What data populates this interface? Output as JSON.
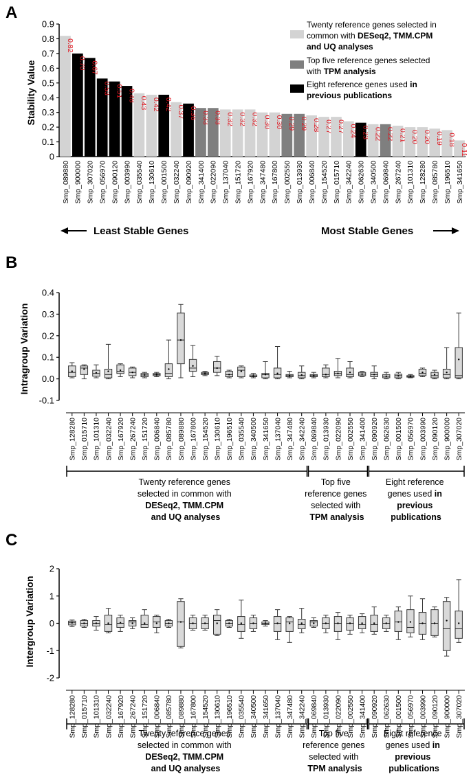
{
  "colors": {
    "common": "#d3d3d3",
    "tpm": "#7f7f7f",
    "previous": "#000000",
    "value_label": "#e0141e",
    "box_fill": "#d9d9d9"
  },
  "panel_a": {
    "letter": "A",
    "ylabel": "Stability  Value",
    "yticks": [
      "0",
      "0.1",
      "0.2",
      "0.3",
      "0.4",
      "0.5",
      "0.6",
      "0.7",
      "0.8",
      "0.9"
    ],
    "legend": [
      {
        "group": "common",
        "lines": [
          [
            "Twenty reference genes selected in",
            ""
          ],
          [
            "common with ",
            "DESeq2, TMM.CPM"
          ],
          [
            "",
            "and UQ analyses"
          ]
        ]
      },
      {
        "group": "tpm",
        "lines": [
          [
            "Top five reference genes selected",
            ""
          ],
          [
            "with ",
            "TPM analysis"
          ]
        ]
      },
      {
        "group": "previous",
        "lines": [
          [
            "Eight reference genes used ",
            "in"
          ],
          [
            "",
            "previous publications"
          ]
        ]
      }
    ],
    "left_label": "Least  Stable Genes",
    "right_label": "Most Stable Genes"
  },
  "panel_b": {
    "letter": "B",
    "ylabel": "Intragroup  Variation",
    "yticks": [
      "-0.1",
      "0.0",
      "0.1",
      "0.2",
      "0.3",
      "0.4"
    ]
  },
  "panel_c": {
    "letter": "C",
    "ylabel": "Intergroup  Variation",
    "yticks": [
      "-2",
      "-1",
      "0",
      "1",
      "2"
    ]
  },
  "group_labels": [
    {
      "lines": [
        [
          "Twenty reference genes",
          ""
        ],
        [
          "selected in common with",
          ""
        ],
        [
          "",
          "DESeq2, TMM.CPM"
        ],
        [
          "",
          "and UQ analyses"
        ]
      ]
    },
    {
      "lines": [
        [
          "Top five",
          ""
        ],
        [
          "reference genes",
          ""
        ],
        [
          "selected with",
          ""
        ],
        [
          "",
          "TPM analysis"
        ]
      ]
    },
    {
      "lines": [
        [
          "Eight reference",
          ""
        ],
        [
          "genes used ",
          "in"
        ],
        [
          "",
          "previous"
        ],
        [
          "",
          "publications"
        ]
      ]
    }
  ],
  "chart_data": [
    {
      "type": "bar",
      "ylabel": "Stability  Value",
      "ylim": [
        0,
        0.9
      ],
      "categories": [
        "Smp_089880",
        "Smp_900000",
        "Smp_307020",
        "Smp_056970",
        "Smp_090120",
        "Smp_003990",
        "Smp_035540",
        "Smp_130610",
        "Smp_001500",
        "Smp_032240",
        "Smp_090920",
        "Smp_341400",
        "Smp_022090",
        "Smp_137040",
        "Smp_151720",
        "Smp_167920",
        "Smp_347480",
        "Smp_167800",
        "Smp_002550",
        "Smp_013930",
        "Smp_006840",
        "Smp_154520",
        "Smp_015710",
        "Smp_342240",
        "Smp_062630",
        "Smp_340500",
        "Smp_069840",
        "Smp_267240",
        "Smp_101310",
        "Smp_128280",
        "Smp_085780",
        "Smp_196510",
        "Smp_341650"
      ],
      "values": [
        0.82,
        0.7,
        0.67,
        0.53,
        0.51,
        0.48,
        0.43,
        0.42,
        0.42,
        0.37,
        0.36,
        0.33,
        0.33,
        0.32,
        0.32,
        0.32,
        0.3,
        0.3,
        0.29,
        0.29,
        0.28,
        0.27,
        0.27,
        0.24,
        0.23,
        0.22,
        0.22,
        0.21,
        0.2,
        0.2,
        0.19,
        0.18,
        0.11
      ],
      "groups": [
        "common",
        "previous",
        "previous",
        "previous",
        "previous",
        "previous",
        "common",
        "common",
        "previous",
        "common",
        "previous",
        "tpm",
        "tpm",
        "common",
        "common",
        "common",
        "common",
        "common",
        "tpm",
        "tpm",
        "common",
        "common",
        "common",
        "common",
        "previous",
        "common",
        "tpm",
        "common",
        "common",
        "common",
        "common",
        "common",
        "common"
      ],
      "legend": [
        "Twenty reference genes selected in common with DESeq2, TMM.CPM and UQ analyses",
        "Top five reference genes selected with TPM analysis",
        "Eight reference genes used in previous publications"
      ]
    },
    {
      "type": "box",
      "ylabel": "Intragroup  Variation",
      "ylim": [
        -0.1,
        0.4
      ],
      "categories": [
        "Smp_128280",
        "Smp_015710",
        "Smp_101310",
        "Smp_032240",
        "Smp_167920",
        "Smp_267240",
        "Smp_151720",
        "Smp_006840",
        "Smp_085780",
        "Smp_089880",
        "Smp_167800",
        "Smp_154520",
        "Smp_130610",
        "Smp_196510",
        "Smp_035540",
        "Smp_340500",
        "Smp_341650",
        "Smp_137040",
        "Smp_347480",
        "Smp_342240",
        "Smp_069840",
        "Smp_013930",
        "Smp_022090",
        "Smp_002550",
        "Smp_341400",
        "Smp_090920",
        "Smp_062630",
        "Smp_001500",
        "Smp_056970",
        "Smp_003990",
        "Smp_090120",
        "Smp_900000",
        "Smp_307020"
      ],
      "boxes": [
        {
          "min": 0.005,
          "q1": 0.01,
          "median": 0.03,
          "q3": 0.06,
          "max": 0.075,
          "mean": 0.035
        },
        {
          "min": 0.0,
          "q1": 0.02,
          "median": 0.05,
          "q3": 0.06,
          "max": 0.065,
          "mean": 0.045
        },
        {
          "min": 0.005,
          "q1": 0.012,
          "median": 0.025,
          "q3": 0.04,
          "max": 0.065,
          "mean": 0.028
        },
        {
          "min": 0.0,
          "q1": 0.005,
          "median": 0.02,
          "q3": 0.045,
          "max": 0.16,
          "mean": 0.035
        },
        {
          "min": 0.01,
          "q1": 0.025,
          "median": 0.035,
          "q3": 0.065,
          "max": 0.07,
          "mean": 0.04
        },
        {
          "min": 0.005,
          "q1": 0.015,
          "median": 0.03,
          "q3": 0.05,
          "max": 0.055,
          "mean": 0.03
        },
        {
          "min": 0.005,
          "q1": 0.01,
          "median": 0.018,
          "q3": 0.025,
          "max": 0.03,
          "mean": 0.018
        },
        {
          "min": 0.01,
          "q1": 0.015,
          "median": 0.02,
          "q3": 0.025,
          "max": 0.03,
          "mean": 0.02
        },
        {
          "min": 0.0,
          "q1": 0.01,
          "median": 0.025,
          "q3": 0.07,
          "max": 0.18,
          "mean": 0.045
        },
        {
          "min": 0.005,
          "q1": 0.07,
          "median": 0.18,
          "q3": 0.305,
          "max": 0.345,
          "mean": 0.18
        },
        {
          "min": 0.01,
          "q1": 0.035,
          "median": 0.05,
          "q3": 0.09,
          "max": 0.155,
          "mean": 0.06
        },
        {
          "min": 0.015,
          "q1": 0.02,
          "median": 0.025,
          "q3": 0.03,
          "max": 0.035,
          "mean": 0.025
        },
        {
          "min": 0.015,
          "q1": 0.03,
          "median": 0.05,
          "q3": 0.08,
          "max": 0.105,
          "mean": 0.05
        },
        {
          "min": 0.005,
          "q1": 0.01,
          "median": 0.02,
          "q3": 0.035,
          "max": 0.04,
          "mean": 0.02
        },
        {
          "min": 0.005,
          "q1": 0.01,
          "median": 0.04,
          "q3": 0.055,
          "max": 0.06,
          "mean": 0.035
        },
        {
          "min": 0.005,
          "q1": 0.01,
          "median": 0.012,
          "q3": 0.018,
          "max": 0.025,
          "mean": 0.013
        },
        {
          "min": 0.0,
          "q1": 0.005,
          "median": 0.02,
          "q3": 0.025,
          "max": 0.08,
          "mean": 0.02
        },
        {
          "min": 0.0,
          "q1": 0.005,
          "median": 0.02,
          "q3": 0.05,
          "max": 0.15,
          "mean": 0.025
        },
        {
          "min": 0.005,
          "q1": 0.01,
          "median": 0.015,
          "q3": 0.02,
          "max": 0.035,
          "mean": 0.015
        },
        {
          "min": 0.0,
          "q1": 0.005,
          "median": 0.015,
          "q3": 0.03,
          "max": 0.06,
          "mean": 0.018
        },
        {
          "min": 0.005,
          "q1": 0.01,
          "median": 0.015,
          "q3": 0.02,
          "max": 0.03,
          "mean": 0.015
        },
        {
          "min": 0.005,
          "q1": 0.01,
          "median": 0.02,
          "q3": 0.05,
          "max": 0.065,
          "mean": 0.02
        },
        {
          "min": 0.005,
          "q1": 0.015,
          "median": 0.025,
          "q3": 0.035,
          "max": 0.095,
          "mean": 0.025
        },
        {
          "min": 0.005,
          "q1": 0.01,
          "median": 0.02,
          "q3": 0.05,
          "max": 0.08,
          "mean": 0.03
        },
        {
          "min": 0.01,
          "q1": 0.015,
          "median": 0.022,
          "q3": 0.03,
          "max": 0.035,
          "mean": 0.022
        },
        {
          "min": 0.0,
          "q1": 0.01,
          "median": 0.02,
          "q3": 0.03,
          "max": 0.06,
          "mean": 0.02
        },
        {
          "min": 0.0,
          "q1": 0.005,
          "median": 0.012,
          "q3": 0.02,
          "max": 0.03,
          "mean": 0.012
        },
        {
          "min": 0.0,
          "q1": 0.005,
          "median": 0.015,
          "q3": 0.022,
          "max": 0.03,
          "mean": 0.014
        },
        {
          "min": 0.005,
          "q1": 0.008,
          "median": 0.012,
          "q3": 0.015,
          "max": 0.02,
          "mean": 0.012
        },
        {
          "min": 0.01,
          "q1": 0.015,
          "median": 0.025,
          "q3": 0.045,
          "max": 0.05,
          "mean": 0.03
        },
        {
          "min": 0.0,
          "q1": 0.005,
          "median": 0.015,
          "q3": 0.03,
          "max": 0.04,
          "mean": 0.02
        },
        {
          "min": 0.0,
          "q1": 0.005,
          "median": 0.02,
          "q3": 0.045,
          "max": 0.145,
          "mean": 0.03
        },
        {
          "min": 0.0,
          "q1": 0.005,
          "median": 0.015,
          "q3": 0.145,
          "max": 0.305,
          "mean": 0.09
        }
      ]
    },
    {
      "type": "box",
      "ylabel": "Intergroup  Variation",
      "ylim": [
        -2,
        2
      ],
      "categories": [
        "Smp_128280",
        "Smp_015710",
        "Smp_101310",
        "Smp_032240",
        "Smp_167920",
        "Smp_267240",
        "Smp_151720",
        "Smp_006840",
        "Smp_085780",
        "Smp_089880",
        "Smp_167800",
        "Smp_154520",
        "Smp_130610",
        "Smp_196510",
        "Smp_035540",
        "Smp_340500",
        "Smp_341650",
        "Smp_137040",
        "Smp_347480",
        "Smp_342240",
        "Smp_069840",
        "Smp_013930",
        "Smp_022090",
        "Smp_002550",
        "Smp_341400",
        "Smp_090920",
        "Smp_062630",
        "Smp_001500",
        "Smp_056970",
        "Smp_003990",
        "Smp_090120",
        "Smp_900000",
        "Smp_307020"
      ],
      "boxes": [
        {
          "min": -0.12,
          "q1": -0.06,
          "median": 0.02,
          "q3": 0.08,
          "max": 0.12,
          "mean": 0.02
        },
        {
          "min": -0.15,
          "q1": -0.1,
          "median": 0.0,
          "q3": 0.1,
          "max": 0.15,
          "mean": 0.0
        },
        {
          "min": -0.25,
          "q1": -0.1,
          "median": 0.0,
          "q3": 0.1,
          "max": 0.25,
          "mean": 0.0
        },
        {
          "min": -0.35,
          "q1": -0.3,
          "median": -0.05,
          "q3": 0.3,
          "max": 0.55,
          "mean": 0.0
        },
        {
          "min": -0.3,
          "q1": -0.15,
          "median": 0.0,
          "q3": 0.2,
          "max": 0.3,
          "mean": 0.02
        },
        {
          "min": -0.2,
          "q1": -0.1,
          "median": 0.05,
          "q3": 0.1,
          "max": 0.2,
          "mean": 0.0
        },
        {
          "min": -0.15,
          "q1": -0.15,
          "median": -0.05,
          "q3": 0.3,
          "max": 0.5,
          "mean": 0.0
        },
        {
          "min": -0.35,
          "q1": -0.15,
          "median": 0.05,
          "q3": 0.25,
          "max": 0.3,
          "mean": 0.0
        },
        {
          "min": -0.15,
          "q1": -0.1,
          "median": 0.0,
          "q3": 0.1,
          "max": 0.15,
          "mean": 0.0
        },
        {
          "min": -0.9,
          "q1": -0.85,
          "median": 0.05,
          "q3": 0.8,
          "max": 0.9,
          "mean": 0.05
        },
        {
          "min": -0.25,
          "q1": -0.2,
          "median": 0.0,
          "q3": 0.2,
          "max": 0.3,
          "mean": 0.0
        },
        {
          "min": -0.25,
          "q1": -0.2,
          "median": 0.0,
          "q3": 0.2,
          "max": 0.3,
          "mean": 0.0
        },
        {
          "min": -0.45,
          "q1": -0.4,
          "median": 0.1,
          "q3": 0.3,
          "max": 0.5,
          "mean": 0.0
        },
        {
          "min": -0.15,
          "q1": -0.1,
          "median": 0.0,
          "q3": 0.1,
          "max": 0.15,
          "mean": 0.0
        },
        {
          "min": -0.55,
          "q1": -0.3,
          "median": -0.05,
          "q3": 0.25,
          "max": 0.85,
          "mean": 0.0
        },
        {
          "min": -0.3,
          "q1": -0.2,
          "median": 0.0,
          "q3": 0.2,
          "max": 0.3,
          "mean": 0.0
        },
        {
          "min": -0.1,
          "q1": -0.05,
          "median": 0.0,
          "q3": 0.05,
          "max": 0.1,
          "mean": 0.0
        },
        {
          "min": -0.6,
          "q1": -0.3,
          "median": 0.0,
          "q3": 0.25,
          "max": 0.5,
          "mean": 0.0
        },
        {
          "min": -0.7,
          "q1": -0.3,
          "median": 0.05,
          "q3": 0.2,
          "max": 0.25,
          "mean": 0.0
        },
        {
          "min": -0.35,
          "q1": -0.2,
          "median": -0.05,
          "q3": 0.15,
          "max": 0.55,
          "mean": 0.0
        },
        {
          "min": -0.15,
          "q1": -0.1,
          "median": 0.05,
          "q3": 0.1,
          "max": 0.2,
          "mean": 0.0
        },
        {
          "min": -0.35,
          "q1": -0.2,
          "median": 0.0,
          "q3": 0.2,
          "max": 0.3,
          "mean": 0.0
        },
        {
          "min": -0.6,
          "q1": -0.3,
          "median": 0.0,
          "q3": 0.25,
          "max": 0.4,
          "mean": 0.0
        },
        {
          "min": -0.4,
          "q1": -0.25,
          "median": 0.0,
          "q3": 0.2,
          "max": 0.3,
          "mean": 0.0
        },
        {
          "min": -0.35,
          "q1": -0.2,
          "median": -0.05,
          "q3": 0.25,
          "max": 0.35,
          "mean": 0.0
        },
        {
          "min": -0.4,
          "q1": -0.3,
          "median": -0.05,
          "q3": 0.3,
          "max": 0.6,
          "mean": 0.0
        },
        {
          "min": -0.3,
          "q1": -0.2,
          "median": 0.0,
          "q3": 0.2,
          "max": 0.3,
          "mean": 0.0
        },
        {
          "min": -0.6,
          "q1": -0.3,
          "median": 0.05,
          "q3": 0.45,
          "max": 0.6,
          "mean": 0.05
        },
        {
          "min": -0.5,
          "q1": -0.35,
          "median": -0.15,
          "q3": 0.5,
          "max": 1.0,
          "mean": 0.05
        },
        {
          "min": -0.6,
          "q1": -0.4,
          "median": 0.0,
          "q3": 0.4,
          "max": 0.9,
          "mean": 0.0
        },
        {
          "min": -0.5,
          "q1": -0.45,
          "median": 0.0,
          "q3": 0.5,
          "max": 0.6,
          "mean": 0.0
        },
        {
          "min": -1.2,
          "q1": -1.0,
          "median": -0.2,
          "q3": 0.8,
          "max": 0.95,
          "mean": 0.1
        },
        {
          "min": -0.7,
          "q1": -0.55,
          "median": -0.2,
          "q3": 0.45,
          "max": 1.6,
          "mean": 0.0
        }
      ]
    }
  ]
}
